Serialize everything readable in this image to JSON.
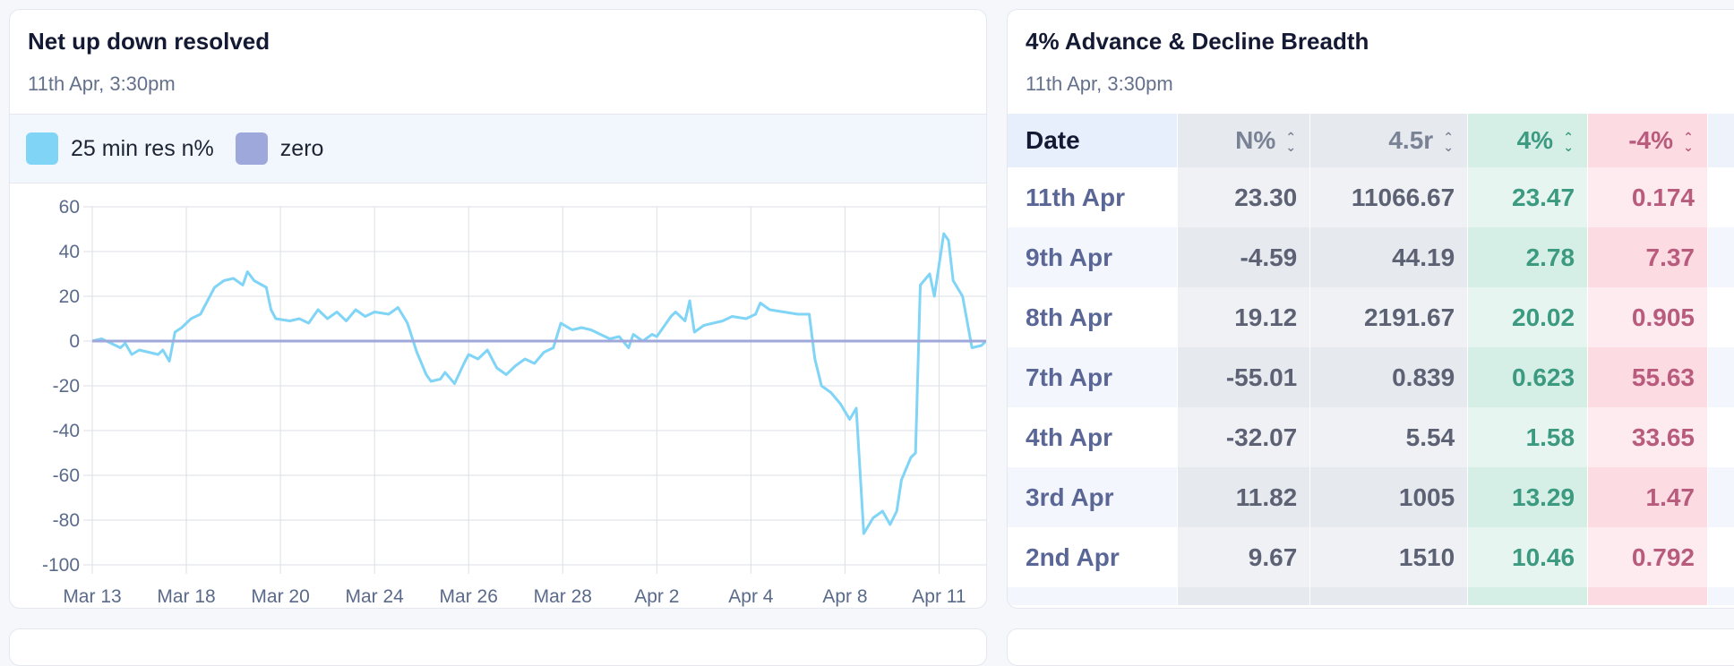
{
  "left_card": {
    "title": "Net up down resolved",
    "timestamp": "11th Apr, 3:30pm",
    "legend": [
      {
        "label": "25 min res n%",
        "color": "#80d4f6"
      },
      {
        "label": "zero",
        "color": "#9fa8da"
      }
    ]
  },
  "chart_data": {
    "type": "line",
    "title": "Net up down resolved",
    "xlabel": "",
    "ylabel": "",
    "ylim": [
      -100,
      60
    ],
    "yticks": [
      60,
      40,
      20,
      0,
      -20,
      -40,
      -60,
      -80,
      -100
    ],
    "xtick_labels": [
      "Mar 13",
      "Mar 18",
      "Mar 20",
      "Mar 24",
      "Mar 26",
      "Mar 28",
      "Apr 2",
      "Apr 4",
      "Apr 8",
      "Apr 11"
    ],
    "x_domain": [
      0,
      9.5
    ],
    "grid": true,
    "series": [
      {
        "name": "25 min res n%",
        "color": "#80d4f6",
        "points": [
          [
            0,
            0
          ],
          [
            0.1,
            1
          ],
          [
            0.2,
            -1
          ],
          [
            0.3,
            -3
          ],
          [
            0.35,
            -1
          ],
          [
            0.42,
            -6
          ],
          [
            0.5,
            -4
          ],
          [
            0.6,
            -5
          ],
          [
            0.7,
            -6
          ],
          [
            0.75,
            -4
          ],
          [
            0.82,
            -9
          ],
          [
            0.88,
            4
          ],
          [
            0.95,
            6
          ],
          [
            1.05,
            10
          ],
          [
            1.15,
            12
          ],
          [
            1.25,
            20
          ],
          [
            1.3,
            24
          ],
          [
            1.4,
            27
          ],
          [
            1.5,
            28
          ],
          [
            1.6,
            25
          ],
          [
            1.65,
            31
          ],
          [
            1.72,
            27
          ],
          [
            1.85,
            24
          ],
          [
            1.9,
            14
          ],
          [
            1.95,
            10
          ],
          [
            2.1,
            9
          ],
          [
            2.2,
            10
          ],
          [
            2.3,
            8
          ],
          [
            2.4,
            14
          ],
          [
            2.5,
            10
          ],
          [
            2.6,
            13
          ],
          [
            2.7,
            9
          ],
          [
            2.8,
            14
          ],
          [
            2.9,
            11
          ],
          [
            3.0,
            13
          ],
          [
            3.15,
            12
          ],
          [
            3.25,
            15
          ],
          [
            3.35,
            8
          ],
          [
            3.45,
            -5
          ],
          [
            3.55,
            -15
          ],
          [
            3.6,
            -18
          ],
          [
            3.7,
            -17
          ],
          [
            3.75,
            -14
          ],
          [
            3.85,
            -19
          ],
          [
            3.95,
            -10
          ],
          [
            4.0,
            -6
          ],
          [
            4.1,
            -8
          ],
          [
            4.2,
            -4
          ],
          [
            4.3,
            -12
          ],
          [
            4.4,
            -15
          ],
          [
            4.5,
            -11
          ],
          [
            4.6,
            -8
          ],
          [
            4.7,
            -10
          ],
          [
            4.8,
            -5
          ],
          [
            4.9,
            -3
          ],
          [
            4.98,
            8
          ],
          [
            5.1,
            5
          ],
          [
            5.2,
            6
          ],
          [
            5.3,
            5
          ],
          [
            5.4,
            3
          ],
          [
            5.5,
            1
          ],
          [
            5.6,
            2
          ],
          [
            5.7,
            -3
          ],
          [
            5.75,
            3
          ],
          [
            5.85,
            0
          ],
          [
            5.95,
            3
          ],
          [
            6.0,
            2
          ],
          [
            6.05,
            5
          ],
          [
            6.15,
            11
          ],
          [
            6.2,
            13
          ],
          [
            6.3,
            9
          ],
          [
            6.35,
            18
          ],
          [
            6.4,
            4
          ],
          [
            6.5,
            7
          ],
          [
            6.6,
            8
          ],
          [
            6.7,
            9
          ],
          [
            6.8,
            11
          ],
          [
            6.95,
            10
          ],
          [
            7.05,
            12
          ],
          [
            7.1,
            17
          ],
          [
            7.2,
            14
          ],
          [
            7.35,
            13
          ],
          [
            7.5,
            12
          ],
          [
            7.62,
            12
          ],
          [
            7.68,
            -8
          ],
          [
            7.75,
            -20
          ],
          [
            7.85,
            -23
          ],
          [
            7.95,
            -28
          ],
          [
            8.05,
            -35
          ],
          [
            8.12,
            -30
          ],
          [
            8.2,
            -86
          ],
          [
            8.3,
            -79
          ],
          [
            8.4,
            -76
          ],
          [
            8.48,
            -82
          ],
          [
            8.55,
            -76
          ],
          [
            8.6,
            -62
          ],
          [
            8.7,
            -52
          ],
          [
            8.75,
            -50
          ],
          [
            8.8,
            25
          ],
          [
            8.9,
            30
          ],
          [
            8.95,
            20
          ],
          [
            9.05,
            48
          ],
          [
            9.1,
            45
          ],
          [
            9.15,
            27
          ],
          [
            9.25,
            20
          ],
          [
            9.35,
            -3
          ],
          [
            9.45,
            -2
          ],
          [
            9.5,
            0
          ]
        ]
      },
      {
        "name": "zero",
        "color": "#9fa8da",
        "points": [
          [
            0,
            0
          ],
          [
            9.5,
            0
          ]
        ]
      }
    ]
  },
  "right_card": {
    "title": "4% Advance & Decline Breadth",
    "timestamp": "11th Apr, 3:30pm",
    "columns": [
      "Date",
      "N%",
      "4.5r",
      "4%",
      "-4%"
    ],
    "rows": [
      [
        "11th Apr",
        "23.30",
        "11066.67",
        "23.47",
        "0.174"
      ],
      [
        "9th Apr",
        "-4.59",
        "44.19",
        "2.78",
        "7.37"
      ],
      [
        "8th Apr",
        "19.12",
        "2191.67",
        "20.02",
        "0.905"
      ],
      [
        "7th Apr",
        "-55.01",
        "0.839",
        "0.623",
        "55.63"
      ],
      [
        "4th Apr",
        "-32.07",
        "5.54",
        "1.58",
        "33.65"
      ],
      [
        "3rd Apr",
        "11.82",
        "1005",
        "13.29",
        "1.47"
      ],
      [
        "2nd Apr",
        "9.67",
        "1510",
        "10.46",
        "0.792"
      ]
    ],
    "colors": {
      "positive_text": "#3c9a80",
      "negative_text": "#b85b7d",
      "neutral_text": "#5c6274"
    }
  }
}
